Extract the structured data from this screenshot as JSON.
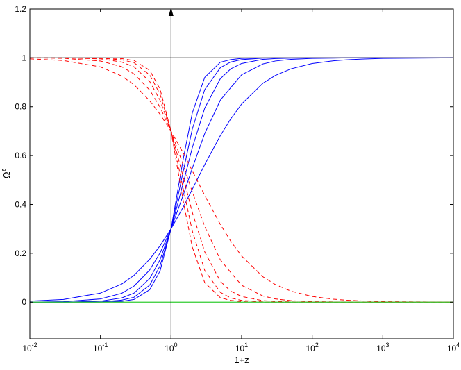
{
  "chart_data": {
    "type": "line",
    "xlabel": "1+z",
    "ylabel": "Ω",
    "ylabel_superscript": "z",
    "xscale": "log",
    "xlim": [
      0.01,
      10000
    ],
    "ylim": [
      -0.15,
      1.2
    ],
    "grid": false,
    "legend": "none",
    "x_ticks": [
      {
        "value": 0.01,
        "base": "10",
        "exp": "-2"
      },
      {
        "value": 0.1,
        "base": "10",
        "exp": "-1"
      },
      {
        "value": 1,
        "base": "10",
        "exp": "0"
      },
      {
        "value": 10,
        "base": "10",
        "exp": "1"
      },
      {
        "value": 100,
        "base": "10",
        "exp": "2"
      },
      {
        "value": 1000,
        "base": "10",
        "exp": "3"
      },
      {
        "value": 10000,
        "base": "10",
        "exp": "4"
      }
    ],
    "y_ticks": [
      {
        "value": 0,
        "label": "0"
      },
      {
        "value": 0.2,
        "label": "0.2"
      },
      {
        "value": 0.4,
        "label": "0.4"
      },
      {
        "value": 0.6,
        "label": "0.6"
      },
      {
        "value": 0.8,
        "label": "0.8"
      },
      {
        "value": 1.0,
        "label": "1"
      },
      {
        "value": 1.2,
        "label": "1.2"
      }
    ],
    "curve_family": {
      "x": [
        0.01,
        0.03,
        0.1,
        0.2,
        0.3,
        0.5,
        0.7,
        1,
        1.5,
        2,
        3,
        5,
        7,
        10,
        20,
        30,
        50,
        100,
        200,
        300,
        500,
        1000,
        10000
      ],
      "exponents": [
        1,
        1.5,
        2,
        2.5,
        3
      ],
      "matter_fraction_today": 0.3
    },
    "series": [
      {
        "color": "#0000ff",
        "dash": "solid",
        "y": [
          0.004,
          0.011,
          0.037,
          0.074,
          0.11,
          0.176,
          0.231,
          0.3,
          0.391,
          0.462,
          0.563,
          0.682,
          0.75,
          0.811,
          0.896,
          0.928,
          0.955,
          0.977,
          0.988,
          0.992,
          0.995,
          0.998,
          1.0
        ]
      },
      {
        "color": "#0000ff",
        "dash": "solid",
        "y": [
          0.0,
          0.002,
          0.013,
          0.036,
          0.066,
          0.132,
          0.202,
          0.3,
          0.441,
          0.548,
          0.69,
          0.827,
          0.878,
          0.931,
          0.975,
          0.987,
          0.994,
          0.998,
          0.999,
          1.0,
          1.0,
          1.0,
          1.0
        ]
      },
      {
        "color": "#0000ff",
        "dash": "solid",
        "y": [
          0.0,
          0.0,
          0.004,
          0.017,
          0.037,
          0.097,
          0.174,
          0.3,
          0.491,
          0.632,
          0.794,
          0.915,
          0.955,
          0.977,
          0.994,
          0.997,
          0.999,
          1.0,
          1.0,
          1.0,
          1.0,
          1.0,
          1.0
        ]
      },
      {
        "color": "#0000ff",
        "dash": "solid",
        "y": [
          0.0,
          0.0,
          0.001,
          0.008,
          0.02,
          0.07,
          0.149,
          0.3,
          0.54,
          0.708,
          0.87,
          0.96,
          0.983,
          0.993,
          0.999,
          1.0,
          1.0,
          1.0,
          1.0,
          1.0,
          1.0,
          1.0,
          1.0
        ]
      },
      {
        "color": "#0000ff",
        "dash": "solid",
        "y": [
          0.0,
          0.0,
          0.0,
          0.003,
          0.011,
          0.051,
          0.128,
          0.3,
          0.591,
          0.774,
          0.92,
          0.982,
          0.993,
          0.998,
          1.0,
          1.0,
          1.0,
          1.0,
          1.0,
          1.0,
          1.0,
          1.0,
          1.0
        ]
      },
      {
        "color": "#ff0000",
        "dash": "dashed",
        "y": [
          0.996,
          0.989,
          0.963,
          0.926,
          0.89,
          0.824,
          0.769,
          0.7,
          0.609,
          0.538,
          0.437,
          0.318,
          0.25,
          0.189,
          0.104,
          0.072,
          0.045,
          0.023,
          0.012,
          0.008,
          0.005,
          0.002,
          0.0
        ]
      },
      {
        "color": "#ff0000",
        "dash": "dashed",
        "y": [
          1.0,
          0.998,
          0.987,
          0.964,
          0.934,
          0.868,
          0.798,
          0.7,
          0.559,
          0.452,
          0.31,
          0.173,
          0.122,
          0.069,
          0.025,
          0.013,
          0.006,
          0.002,
          0.001,
          0.0,
          0.0,
          0.0,
          0.0
        ]
      },
      {
        "color": "#ff0000",
        "dash": "dashed",
        "y": [
          1.0,
          1.0,
          0.996,
          0.983,
          0.963,
          0.903,
          0.826,
          0.7,
          0.509,
          0.368,
          0.206,
          0.085,
          0.045,
          0.023,
          0.006,
          0.003,
          0.001,
          0.0,
          0.0,
          0.0,
          0.0,
          0.0,
          0.0
        ]
      },
      {
        "color": "#ff0000",
        "dash": "dashed",
        "y": [
          1.0,
          1.0,
          0.999,
          0.992,
          0.98,
          0.93,
          0.851,
          0.7,
          0.46,
          0.292,
          0.13,
          0.04,
          0.017,
          0.007,
          0.001,
          0.0,
          0.0,
          0.0,
          0.0,
          0.0,
          0.0,
          0.0,
          0.0
        ]
      },
      {
        "color": "#ff0000",
        "dash": "dashed",
        "y": [
          1.0,
          1.0,
          1.0,
          0.997,
          0.989,
          0.949,
          0.872,
          0.7,
          0.409,
          0.226,
          0.08,
          0.018,
          0.007,
          0.002,
          0.0,
          0.0,
          0.0,
          0.0,
          0.0,
          0.0,
          0.0,
          0.0,
          0.0
        ]
      },
      {
        "color": "#000000",
        "dash": "solid",
        "constant": 1.0
      },
      {
        "color": "#33cc33",
        "dash": "solid",
        "constant": 0.0
      }
    ],
    "annotations": [
      {
        "type": "vertical-arrow",
        "x": 1,
        "y_from": -0.15,
        "y_to": 1.2,
        "color": "#000000"
      }
    ]
  }
}
